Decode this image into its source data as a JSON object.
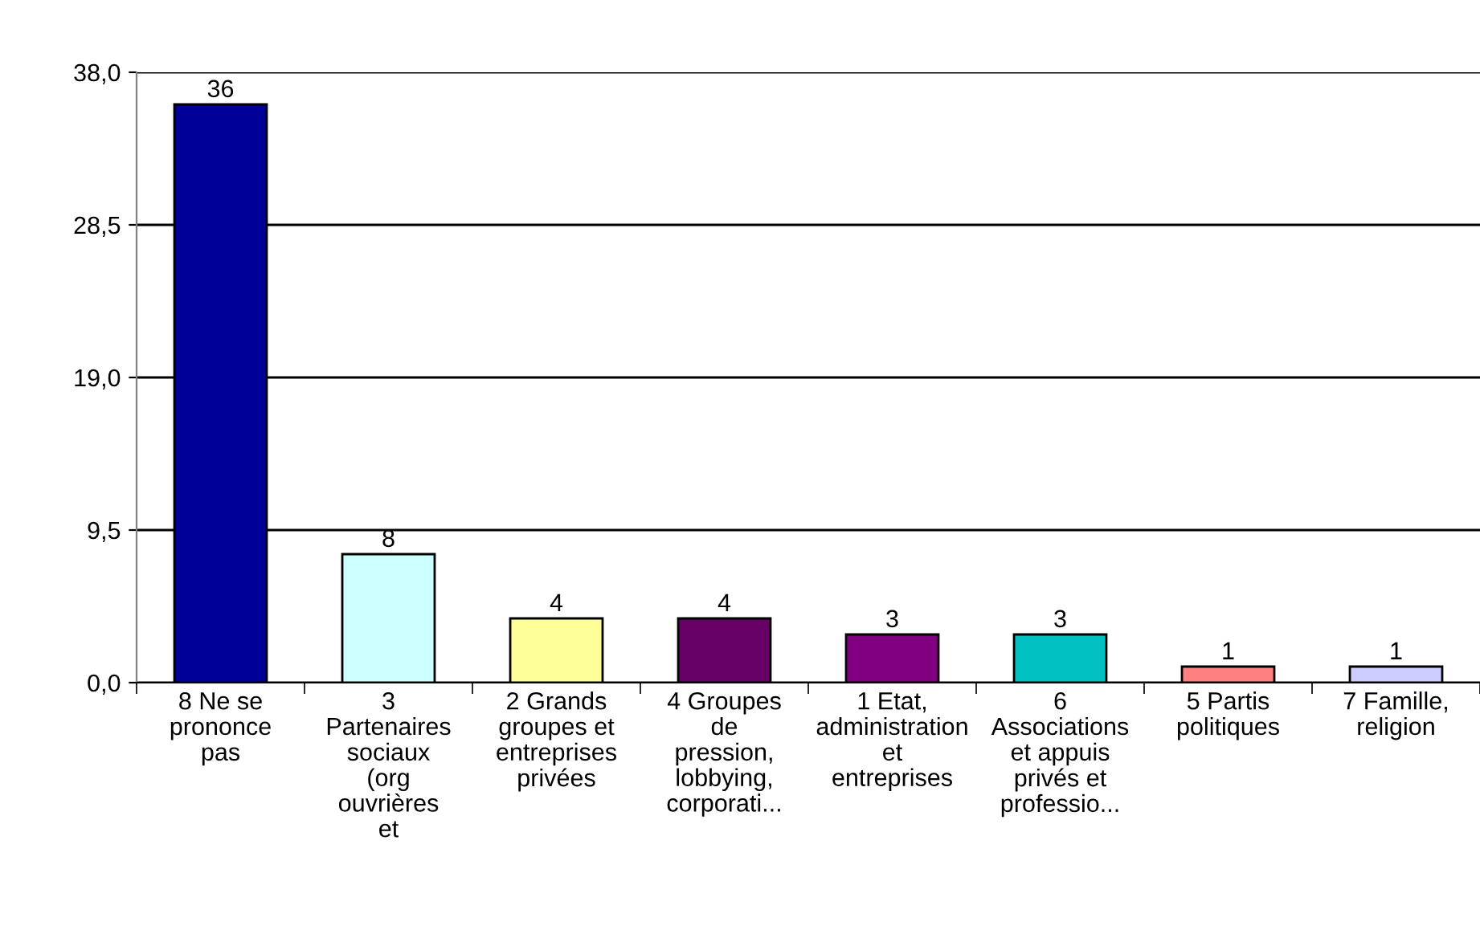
{
  "chart_data": {
    "type": "bar",
    "categories": [
      "8 Ne se\nprononce\npas",
      "3\nPartenaires\nsociaux\n(org\nouvrières\net",
      "2 Grands\ngroupes et\nentreprises\nprivées",
      "4 Groupes\nde\npression,\nlobbying,\ncorporati...",
      "1 Etat,\nadministration\net\nentreprises",
      "6\nAssociations\net appuis\nprivés et\nprofessio...",
      "5 Partis\npolitiques",
      "7 Famille,\nreligion"
    ],
    "values": [
      36,
      8,
      4,
      4,
      3,
      3,
      1,
      1
    ],
    "colors": [
      "#000099",
      "#ccffff",
      "#ffff99",
      "#660066",
      "#800080",
      "#00c0c0",
      "#ff8080",
      "#ccccff"
    ],
    "ylim": [
      0,
      38
    ],
    "yticks": [
      {
        "value": 0,
        "label": "0,0"
      },
      {
        "value": 9.5,
        "label": "9,5"
      },
      {
        "value": 19,
        "label": "19,0"
      },
      {
        "value": 28.5,
        "label": "28,5"
      },
      {
        "value": 38,
        "label": "38,0"
      }
    ],
    "grid": "y",
    "data_labels": true
  }
}
